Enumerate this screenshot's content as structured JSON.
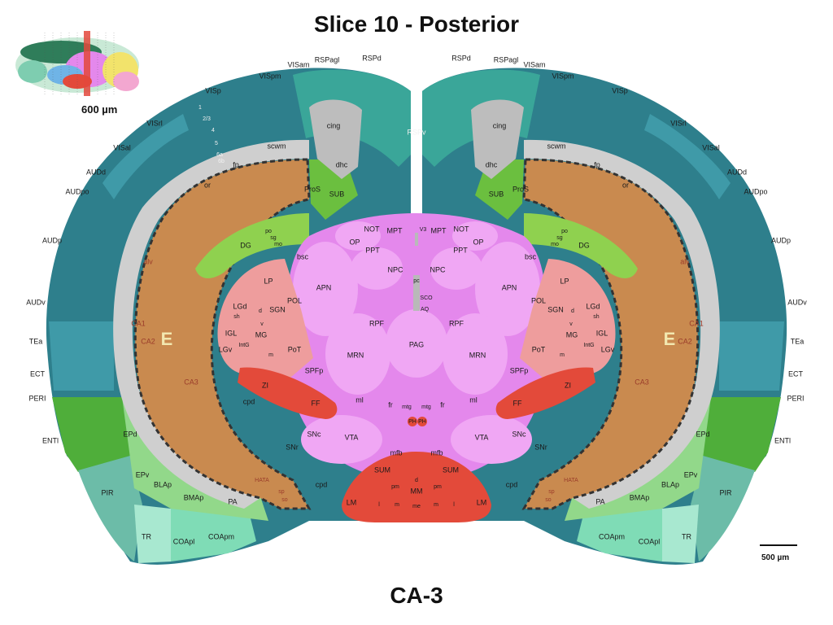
{
  "title": "Slice 10 - Posterior",
  "subtitle": "CA-3",
  "thumbnail": {
    "label": "600 µm"
  },
  "scale_bar": {
    "label": "500 µm"
  },
  "colors": {
    "isocortex": "#2e7f8c",
    "isocortex_light": "#3f9aa8",
    "rsp": "#3aa699",
    "olfactory": "#6cbca8",
    "hippocampus": "#c98a4f",
    "subiculum": "#6bbf3f",
    "dentate": "#8fd14f",
    "entorhinal": "#4fae3a",
    "cortical_subplate": "#92d88a",
    "midbrain": "#e488ec",
    "thalamus": "#ee9d9d",
    "hypothalamus": "#e34a3a",
    "fiber": "#cfcfcf",
    "ventricle": "#b9b9b9"
  },
  "regions": {
    "cortex": [
      "VISp",
      "VISpm",
      "VISam",
      "RSPagl",
      "RSPd",
      "RSPv",
      "VISrl",
      "VISal",
      "AUDd",
      "AUDpo",
      "AUDp",
      "AUDv",
      "TEa",
      "ECT",
      "PERI",
      "ENTl"
    ],
    "layers": [
      "1",
      "2/3",
      "4",
      "5",
      "6a",
      "6b"
    ],
    "fiber": [
      "cing",
      "scwm",
      "dhc",
      "fp",
      "or",
      "alv",
      "bsc",
      "ml",
      "fr",
      "mfb",
      "cpd",
      "mtg",
      "pc"
    ],
    "hippocampus": [
      "ProS",
      "SUB",
      "DG",
      "po",
      "sg",
      "mo",
      "CA1",
      "CA2",
      "CA3",
      "E",
      "HATA",
      "sp",
      "so"
    ],
    "tectum": [
      "NOT",
      "MPT",
      "OP",
      "PPT",
      "NPC",
      "APN",
      "V3",
      "SCO",
      "AQ",
      "RPF",
      "PAG",
      "MRN",
      "VTA",
      "SNc",
      "SNr",
      "PH",
      "PH"
    ],
    "thalamus": [
      "LP",
      "POL",
      "LGd",
      "sh",
      "SGN",
      "d",
      "v",
      "MG",
      "m",
      "IGL",
      "LGv",
      "PoT",
      "IntG",
      "SPFp"
    ],
    "hypothalamus": [
      "ZI",
      "FF",
      "SUM",
      "MM",
      "LM",
      "d",
      "pm",
      "l",
      "m",
      "me"
    ],
    "subplate": [
      "EPd",
      "EPv",
      "BLAp",
      "BMAp",
      "PA",
      "PIR",
      "TR",
      "COApl",
      "COApm"
    ]
  }
}
